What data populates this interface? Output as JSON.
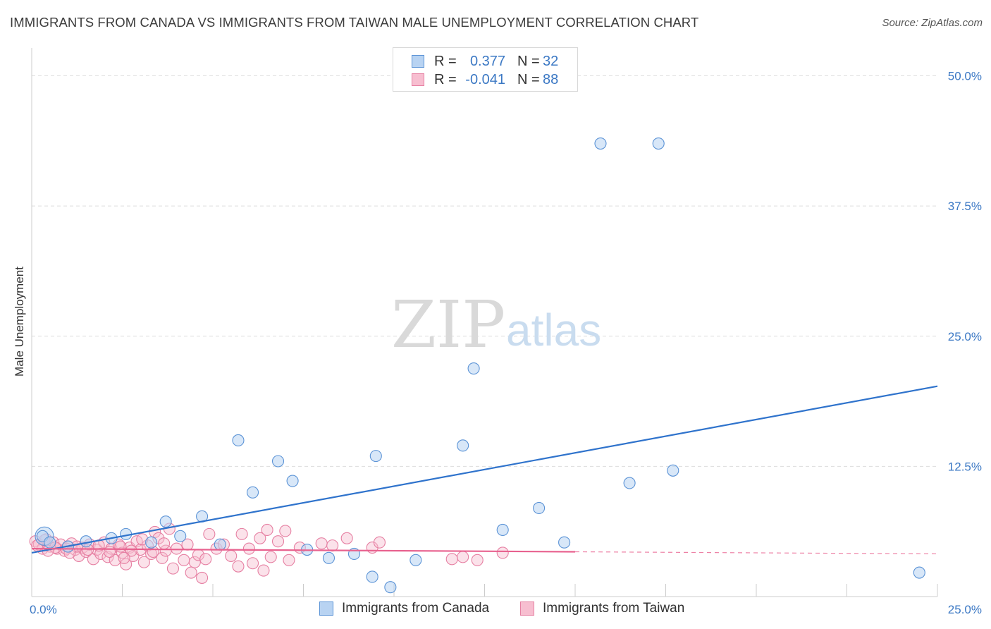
{
  "title": "IMMIGRANTS FROM CANADA VS IMMIGRANTS FROM TAIWAN MALE UNEMPLOYMENT CORRELATION CHART",
  "source": "Source: ZipAtlas.com",
  "watermark": {
    "zip": "ZIP",
    "atlas": "atlas"
  },
  "legend": {
    "canada": {
      "r_label": "R =",
      "r_value": "0.377",
      "n_label": "N =",
      "n_value": "32"
    },
    "taiwan": {
      "r_label": "R =",
      "r_value": "-0.041",
      "n_label": "N =",
      "n_value": "88"
    }
  },
  "bottom_legend": {
    "canada": "Immigrants from Canada",
    "taiwan": "Immigrants from Taiwan"
  },
  "colors": {
    "canada_fill": "#b8d3f2",
    "canada_stroke": "#5b93d6",
    "canada_line": "#2f73cc",
    "taiwan_fill": "#f7bed0",
    "taiwan_stroke": "#e67fa2",
    "taiwan_line": "#e8628f",
    "axis_tick_text": "#3b78c4"
  },
  "chart_data": {
    "type": "scatter",
    "title": "IMMIGRANTS FROM CANADA VS IMMIGRANTS FROM TAIWAN MALE UNEMPLOYMENT CORRELATION CHART",
    "xlabel": "",
    "ylabel": "Male Unemployment",
    "xlim": [
      0,
      25
    ],
    "ylim": [
      0,
      52
    ],
    "x_tick_labels": [
      {
        "value": 0,
        "label": "0.0%"
      },
      {
        "value": 25,
        "label": "25.0%"
      }
    ],
    "y_tick_labels": [
      {
        "value": 12.5,
        "label": "12.5%"
      },
      {
        "value": 25,
        "label": "25.0%"
      },
      {
        "value": 37.5,
        "label": "37.5%"
      },
      {
        "value": 50,
        "label": "50.0%"
      }
    ],
    "series": [
      {
        "name": "Immigrants from Canada",
        "points": [
          [
            0.3,
            5.8
          ],
          [
            0.5,
            5.2
          ],
          [
            1.0,
            4.8
          ],
          [
            1.5,
            5.3
          ],
          [
            2.2,
            5.6
          ],
          [
            2.6,
            6.0
          ],
          [
            3.3,
            5.2
          ],
          [
            3.7,
            7.2
          ],
          [
            4.1,
            5.8
          ],
          [
            4.7,
            7.7
          ],
          [
            5.2,
            5.0
          ],
          [
            5.7,
            15.0
          ],
          [
            6.1,
            10.0
          ],
          [
            6.8,
            13.0
          ],
          [
            7.2,
            11.1
          ],
          [
            7.6,
            4.5
          ],
          [
            8.2,
            3.7
          ],
          [
            8.9,
            4.1
          ],
          [
            9.4,
            1.9
          ],
          [
            9.5,
            13.5
          ],
          [
            9.9,
            0.9
          ],
          [
            10.6,
            3.5
          ],
          [
            11.9,
            14.5
          ],
          [
            12.2,
            21.9
          ],
          [
            13.0,
            6.4
          ],
          [
            14.0,
            8.5
          ],
          [
            14.7,
            5.2
          ],
          [
            15.7,
            43.5
          ],
          [
            16.5,
            10.9
          ],
          [
            17.3,
            43.5
          ],
          [
            17.7,
            12.1
          ],
          [
            24.5,
            2.3
          ]
        ],
        "trend": {
          "x": [
            0,
            25
          ],
          "y": [
            4.2,
            20.2
          ]
        }
      },
      {
        "name": "Immigrants from Taiwan",
        "points": [
          [
            0.1,
            5.3
          ],
          [
            0.2,
            5.0
          ],
          [
            0.3,
            4.6
          ],
          [
            0.4,
            5.5
          ],
          [
            0.5,
            4.8
          ],
          [
            0.6,
            5.2
          ],
          [
            0.7,
            4.6
          ],
          [
            0.8,
            5.0
          ],
          [
            0.9,
            4.4
          ],
          [
            1.0,
            4.8
          ],
          [
            1.1,
            5.1
          ],
          [
            1.2,
            4.5
          ],
          [
            1.3,
            3.9
          ],
          [
            1.4,
            4.7
          ],
          [
            1.5,
            4.3
          ],
          [
            1.6,
            5.0
          ],
          [
            1.7,
            3.6
          ],
          [
            1.8,
            4.5
          ],
          [
            1.9,
            4.1
          ],
          [
            2.0,
            5.2
          ],
          [
            2.1,
            3.8
          ],
          [
            2.2,
            4.6
          ],
          [
            2.3,
            3.5
          ],
          [
            2.4,
            5.0
          ],
          [
            2.5,
            4.2
          ],
          [
            2.6,
            3.1
          ],
          [
            2.7,
            4.7
          ],
          [
            2.8,
            3.9
          ],
          [
            2.9,
            5.3
          ],
          [
            3.0,
            4.5
          ],
          [
            3.1,
            3.3
          ],
          [
            3.2,
            4.9
          ],
          [
            3.3,
            4.1
          ],
          [
            3.4,
            6.2
          ],
          [
            3.5,
            5.6
          ],
          [
            3.6,
            3.7
          ],
          [
            3.7,
            4.4
          ],
          [
            3.8,
            6.5
          ],
          [
            3.9,
            2.7
          ],
          [
            4.0,
            4.6
          ],
          [
            4.2,
            3.5
          ],
          [
            4.3,
            5.0
          ],
          [
            4.4,
            2.3
          ],
          [
            4.5,
            3.3
          ],
          [
            4.6,
            4.0
          ],
          [
            4.7,
            1.8
          ],
          [
            4.8,
            3.6
          ],
          [
            4.9,
            6.0
          ],
          [
            5.1,
            4.6
          ],
          [
            5.3,
            5.0
          ],
          [
            5.5,
            3.9
          ],
          [
            5.7,
            2.9
          ],
          [
            5.8,
            6.0
          ],
          [
            6.0,
            4.6
          ],
          [
            6.1,
            3.2
          ],
          [
            6.3,
            5.6
          ],
          [
            6.4,
            2.5
          ],
          [
            6.5,
            6.4
          ],
          [
            6.6,
            3.8
          ],
          [
            6.8,
            5.3
          ],
          [
            7.0,
            6.3
          ],
          [
            7.1,
            3.5
          ],
          [
            7.4,
            4.7
          ],
          [
            8.0,
            5.1
          ],
          [
            8.3,
            4.9
          ],
          [
            8.7,
            5.6
          ],
          [
            9.4,
            4.7
          ],
          [
            9.6,
            5.2
          ],
          [
            11.6,
            3.6
          ],
          [
            11.9,
            3.8
          ],
          [
            12.3,
            3.5
          ],
          [
            13.0,
            4.2
          ],
          [
            0.15,
            4.9
          ],
          [
            0.35,
            5.4
          ],
          [
            0.65,
            4.7
          ],
          [
            0.95,
            4.6
          ],
          [
            1.25,
            4.8
          ],
          [
            1.55,
            4.5
          ],
          [
            1.85,
            4.9
          ],
          [
            2.15,
            4.3
          ],
          [
            2.45,
            4.8
          ],
          [
            2.75,
            4.4
          ],
          [
            3.05,
            5.5
          ],
          [
            3.35,
            4.3
          ],
          [
            3.65,
            5.1
          ],
          [
            1.05,
            4.2
          ],
          [
            2.55,
            3.7
          ],
          [
            0.45,
            4.4
          ]
        ],
        "trend": {
          "x": [
            0,
            15
          ],
          "y": [
            4.6,
            4.3
          ]
        },
        "trend_dashed": {
          "x": [
            15,
            25
          ],
          "y": [
            4.3,
            4.1
          ]
        }
      }
    ]
  }
}
